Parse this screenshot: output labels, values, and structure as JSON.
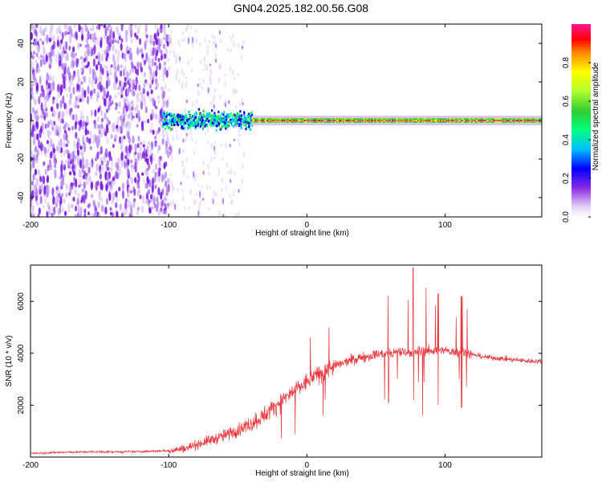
{
  "title": "GN04.2025.182.00.56.G08",
  "chart_data": [
    {
      "type": "heatmap",
      "xlabel": "Height of straight line (km)",
      "ylabel": "Frequency (Hz)",
      "xlim": [
        -200,
        170
      ],
      "ylim": [
        -50,
        50
      ],
      "xticks": [
        -200,
        -100,
        0,
        100
      ],
      "yticks": [
        -40,
        -20,
        0,
        20,
        40
      ],
      "colorbar": {
        "label": "Normalized spectral amplitude",
        "range": [
          0,
          1
        ],
        "ticks": [
          "0.0",
          "0.2",
          "0.4",
          "0.6",
          "0.8"
        ]
      },
      "regions": [
        {
          "x": [
            -200,
            -100
          ],
          "frequency_spread": [
            -50,
            50
          ],
          "amplitude": [
            0.05,
            0.15
          ]
        },
        {
          "x": [
            -100,
            -40
          ],
          "frequency_spread": [
            -8,
            8
          ],
          "amplitude": [
            0.2,
            0.45
          ]
        },
        {
          "x": [
            -40,
            170
          ],
          "frequency_spread": [
            -3,
            3
          ],
          "amplitude": [
            0.4,
            1.0
          ]
        }
      ]
    },
    {
      "type": "line",
      "xlabel": "Height of straight line (km)",
      "ylabel": "SNR (10 * v/v)",
      "xlim": [
        -200,
        170
      ],
      "ylim": [
        0,
        7400
      ],
      "xticks": [
        -200,
        -100,
        0,
        100
      ],
      "yticks": [
        2000,
        4000,
        6000
      ],
      "color": "#e8343a",
      "series": [
        {
          "x": [
            -200,
            -180,
            -160,
            -140,
            -120,
            -100,
            -90,
            -80,
            -70,
            -60,
            -50,
            -40,
            -30,
            -20,
            -10,
            0,
            10,
            20,
            30,
            40,
            50,
            60,
            70,
            80,
            90,
            100,
            110,
            120,
            130,
            140,
            150,
            160,
            170
          ],
          "values": [
            150,
            180,
            200,
            200,
            210,
            250,
            320,
            480,
            650,
            820,
            1050,
            1300,
            1650,
            2100,
            2500,
            2900,
            3250,
            3500,
            3700,
            3850,
            3950,
            4000,
            4050,
            4050,
            4100,
            4100,
            4050,
            3950,
            3850,
            3800,
            3750,
            3700,
            3700
          ]
        }
      ]
    }
  ]
}
